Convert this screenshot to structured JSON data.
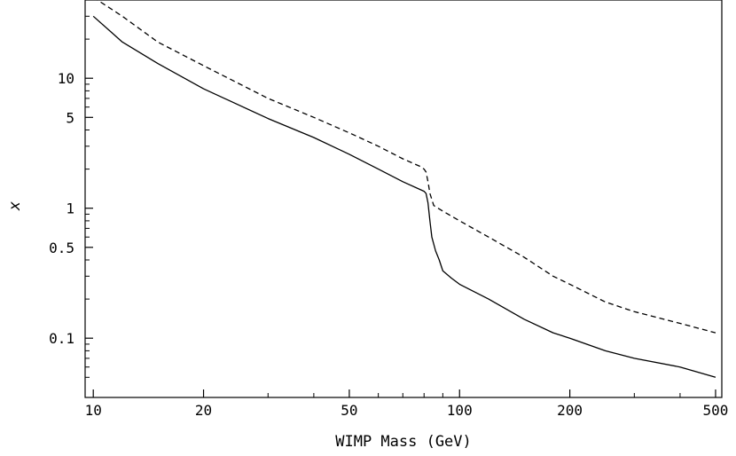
{
  "chart_data": {
    "type": "line",
    "title": "",
    "xlabel": "WIMP Mass (GeV)",
    "ylabel": "x",
    "xscale": "log",
    "yscale": "log",
    "xlim": [
      9.5,
      520
    ],
    "ylim": [
      0.035,
      40
    ],
    "grid": false,
    "legend": "none",
    "x_ticks": [
      10,
      20,
      50,
      100,
      200,
      500
    ],
    "x_tick_labels": [
      "10",
      "20",
      "50",
      "100",
      "200",
      "500"
    ],
    "y_ticks": [
      0.1,
      0.5,
      1,
      5,
      10
    ],
    "y_tick_labels": [
      "0.1",
      "0.5",
      "1",
      "5",
      "10"
    ],
    "series": [
      {
        "style": "solid",
        "color": "#000000",
        "x": [
          10,
          12,
          15,
          20,
          30,
          40,
          50,
          60,
          70,
          80,
          81,
          82,
          83,
          84,
          86,
          88,
          90,
          95,
          100,
          120,
          150,
          180,
          200,
          250,
          300,
          400,
          500
        ],
        "y": [
          30,
          19,
          13,
          8.3,
          4.9,
          3.5,
          2.6,
          2.0,
          1.6,
          1.35,
          1.3,
          1.1,
          0.8,
          0.6,
          0.47,
          0.4,
          0.33,
          0.29,
          0.26,
          0.2,
          0.14,
          0.11,
          0.1,
          0.08,
          0.07,
          0.06,
          0.05
        ]
      },
      {
        "style": "dashed",
        "color": "#000000",
        "x": [
          10,
          12,
          15,
          20,
          30,
          40,
          50,
          60,
          70,
          78,
          80,
          81,
          82,
          83,
          85,
          90,
          100,
          120,
          150,
          180,
          200,
          250,
          300,
          400,
          500
        ],
        "y": [
          42,
          30,
          19,
          12.5,
          7.0,
          5.0,
          3.8,
          3.0,
          2.4,
          2.1,
          2.0,
          1.9,
          1.6,
          1.3,
          1.05,
          0.95,
          0.8,
          0.6,
          0.42,
          0.3,
          0.26,
          0.19,
          0.16,
          0.13,
          0.11
        ]
      }
    ]
  }
}
